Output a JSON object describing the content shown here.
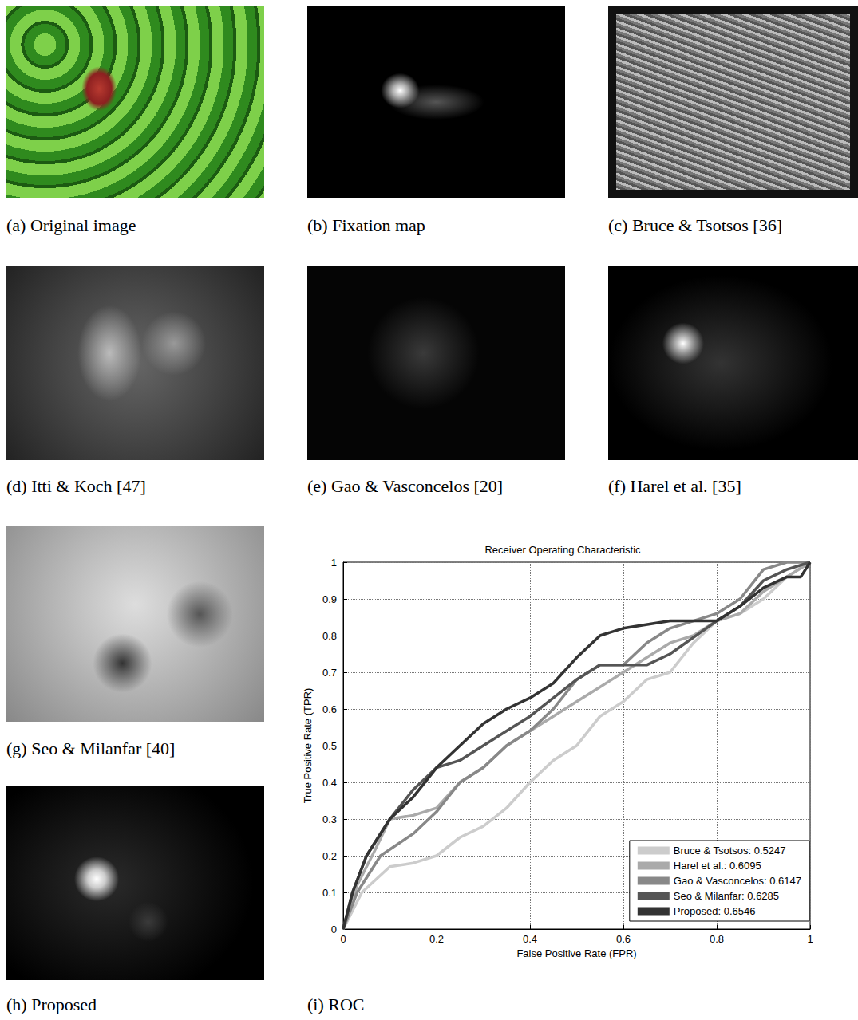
{
  "panels": [
    {
      "caption": "(a) Original image"
    },
    {
      "caption": "(b) Fixation map"
    },
    {
      "caption": "(c) Bruce & Tsotsos [36]"
    },
    {
      "caption": "(d) Itti & Koch [47]"
    },
    {
      "caption": "(e) Gao & Vasconcelos [20]"
    },
    {
      "caption": "(f) Harel et al. [35]"
    },
    {
      "caption": "(g) Seo & Milanfar [40]"
    },
    {
      "caption": "(h) Proposed"
    },
    {
      "caption": "(i) ROC"
    }
  ],
  "chart_data": {
    "type": "line",
    "title": "Receiver Operating Characteristic",
    "x_label": "False Positive Rate (FPR)",
    "y_label": "True Positive Rate (TPR)",
    "xlim": [
      0,
      1
    ],
    "ylim": [
      0,
      1
    ],
    "xticks": [
      0,
      0.2,
      0.4,
      0.6,
      0.8,
      1
    ],
    "yticks": [
      0,
      0.1,
      0.2,
      0.3,
      0.4,
      0.5,
      0.6,
      0.7,
      0.8,
      0.9,
      1
    ],
    "grid": true,
    "legend": "lower right",
    "series": [
      {
        "name": "Bruce & Tsotsos: 0.5247",
        "color": "#cccccc",
        "x": [
          0,
          0.04,
          0.1,
          0.15,
          0.2,
          0.25,
          0.3,
          0.35,
          0.4,
          0.45,
          0.5,
          0.55,
          0.6,
          0.65,
          0.7,
          0.75,
          0.8,
          0.85,
          0.9,
          0.95,
          1
        ],
        "values": [
          0,
          0.1,
          0.17,
          0.18,
          0.2,
          0.25,
          0.28,
          0.33,
          0.4,
          0.46,
          0.5,
          0.58,
          0.62,
          0.68,
          0.7,
          0.78,
          0.84,
          0.86,
          0.9,
          0.96,
          1
        ]
      },
      {
        "name": "Harel et al.: 0.6095",
        "color": "#aaaaaa",
        "x": [
          0,
          0.03,
          0.07,
          0.1,
          0.15,
          0.2,
          0.25,
          0.3,
          0.35,
          0.4,
          0.45,
          0.5,
          0.55,
          0.6,
          0.65,
          0.7,
          0.75,
          0.8,
          0.85,
          0.9,
          1
        ],
        "values": [
          0,
          0.12,
          0.22,
          0.3,
          0.31,
          0.33,
          0.4,
          0.44,
          0.5,
          0.54,
          0.58,
          0.62,
          0.66,
          0.7,
          0.74,
          0.78,
          0.8,
          0.84,
          0.86,
          0.92,
          1
        ]
      },
      {
        "name": "Gao & Vasconcelos: 0.6147",
        "color": "#888888",
        "x": [
          0,
          0.03,
          0.08,
          0.15,
          0.2,
          0.25,
          0.3,
          0.35,
          0.4,
          0.45,
          0.5,
          0.55,
          0.6,
          0.65,
          0.7,
          0.75,
          0.8,
          0.85,
          0.9,
          0.95,
          1
        ],
        "values": [
          0,
          0.1,
          0.2,
          0.26,
          0.32,
          0.4,
          0.44,
          0.5,
          0.54,
          0.6,
          0.68,
          0.72,
          0.72,
          0.78,
          0.82,
          0.84,
          0.86,
          0.9,
          0.98,
          1,
          1
        ]
      },
      {
        "name": "Seo & Milanfar: 0.6285",
        "color": "#555555",
        "x": [
          0,
          0.02,
          0.05,
          0.1,
          0.15,
          0.2,
          0.25,
          0.3,
          0.35,
          0.4,
          0.45,
          0.5,
          0.55,
          0.6,
          0.65,
          0.7,
          0.8,
          0.85,
          0.9,
          0.95,
          1
        ],
        "values": [
          0,
          0.1,
          0.2,
          0.3,
          0.38,
          0.44,
          0.46,
          0.5,
          0.54,
          0.58,
          0.63,
          0.68,
          0.72,
          0.72,
          0.72,
          0.75,
          0.84,
          0.88,
          0.95,
          0.98,
          1
        ]
      },
      {
        "name": "Proposed: 0.6546",
        "color": "#333333",
        "x": [
          0,
          0.02,
          0.05,
          0.1,
          0.15,
          0.2,
          0.25,
          0.3,
          0.35,
          0.4,
          0.45,
          0.5,
          0.55,
          0.6,
          0.7,
          0.8,
          0.85,
          0.9,
          0.95,
          0.98,
          1
        ],
        "values": [
          0,
          0.1,
          0.2,
          0.3,
          0.36,
          0.44,
          0.5,
          0.56,
          0.6,
          0.63,
          0.67,
          0.74,
          0.8,
          0.82,
          0.84,
          0.84,
          0.88,
          0.93,
          0.96,
          0.96,
          1
        ]
      }
    ]
  }
}
